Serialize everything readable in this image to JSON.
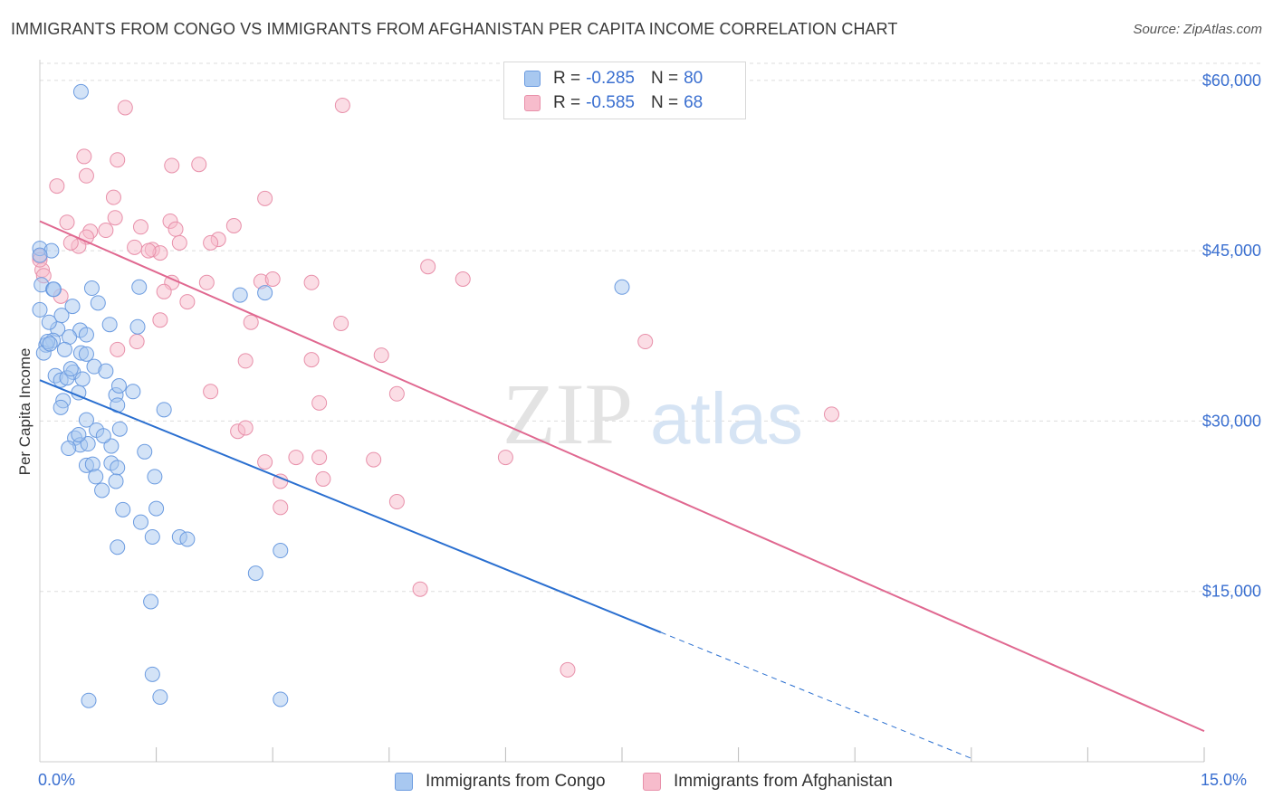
{
  "title": "IMMIGRANTS FROM CONGO VS IMMIGRANTS FROM AFGHANISTAN PER CAPITA INCOME CORRELATION CHART",
  "source": "Source: ZipAtlas.com",
  "watermark": {
    "zip": "ZIP",
    "atlas": "atlas"
  },
  "colors": {
    "congo_fill": "#a8c8f0",
    "congo_stroke": "#6b9be0",
    "congo_line": "#2a6fd0",
    "afghan_fill": "#f7bccc",
    "afghan_stroke": "#e890aa",
    "afghan_line": "#e06890",
    "accent_text": "#3a6fd0",
    "grid": "#dddddd"
  },
  "legend_top": {
    "rows": [
      {
        "r_label": "R =",
        "r_value": "-0.285",
        "n_label": "N =",
        "n_value": "80"
      },
      {
        "r_label": "R =",
        "r_value": "-0.585",
        "n_label": "N =",
        "n_value": "68"
      }
    ]
  },
  "legend_bottom": {
    "congo": "Immigrants from Congo",
    "afghan": "Immigrants from Afghanistan"
  },
  "x_tick_labels": {
    "min": "0.0%",
    "max": "15.0%"
  },
  "chart_data": {
    "type": "scatter",
    "title": "IMMIGRANTS FROM CONGO VS IMMIGRANTS FROM AFGHANISTAN PER CAPITA INCOME CORRELATION CHART",
    "xlabel": "",
    "ylabel": "Per Capita Income",
    "xlim": [
      0,
      15
    ],
    "ylim": [
      0,
      61500
    ],
    "y_ticks": [
      15000,
      30000,
      45000,
      60000
    ],
    "y_tick_labels": [
      "$15,000",
      "$30,000",
      "$45,000",
      "$60,000"
    ],
    "grid": true,
    "legend_position": "top-center",
    "series": [
      {
        "name": "Immigrants from Congo",
        "r": -0.285,
        "n": 80,
        "trend": {
          "x0": 0,
          "y0": 33600,
          "x1": 8.0,
          "y1": 11400,
          "dash_to_x": 12.0
        },
        "points": [
          [
            0.53,
            59000
          ],
          [
            0.0,
            45200
          ],
          [
            0.15,
            45000
          ],
          [
            0.0,
            44600
          ],
          [
            0.02,
            42000
          ],
          [
            0.17,
            41600
          ],
          [
            0.67,
            41700
          ],
          [
            1.28,
            41800
          ],
          [
            2.58,
            41100
          ],
          [
            7.5,
            41800
          ],
          [
            0.0,
            39800
          ],
          [
            0.42,
            40100
          ],
          [
            0.28,
            39300
          ],
          [
            0.23,
            38100
          ],
          [
            0.52,
            38000
          ],
          [
            1.26,
            38300
          ],
          [
            0.17,
            37100
          ],
          [
            0.38,
            37400
          ],
          [
            0.6,
            37600
          ],
          [
            0.08,
            36700
          ],
          [
            0.32,
            36300
          ],
          [
            0.05,
            36000
          ],
          [
            0.53,
            36000
          ],
          [
            0.1,
            37000
          ],
          [
            0.13,
            36800
          ],
          [
            0.7,
            34800
          ],
          [
            0.85,
            34400
          ],
          [
            0.43,
            34300
          ],
          [
            0.2,
            34000
          ],
          [
            0.27,
            33600
          ],
          [
            0.55,
            33700
          ],
          [
            0.35,
            33800
          ],
          [
            0.5,
            32500
          ],
          [
            0.3,
            31800
          ],
          [
            0.98,
            32300
          ],
          [
            1.0,
            31400
          ],
          [
            1.2,
            32600
          ],
          [
            0.6,
            30100
          ],
          [
            0.73,
            29200
          ],
          [
            1.03,
            29300
          ],
          [
            0.45,
            28500
          ],
          [
            0.52,
            27900
          ],
          [
            0.62,
            28000
          ],
          [
            0.92,
            27800
          ],
          [
            0.37,
            27600
          ],
          [
            1.35,
            27300
          ],
          [
            0.6,
            26100
          ],
          [
            0.68,
            26200
          ],
          [
            0.92,
            26300
          ],
          [
            1.0,
            25900
          ],
          [
            1.48,
            25100
          ],
          [
            0.98,
            24700
          ],
          [
            0.8,
            23900
          ],
          [
            1.07,
            22200
          ],
          [
            1.5,
            22300
          ],
          [
            1.3,
            21100
          ],
          [
            1.45,
            19800
          ],
          [
            1.8,
            19800
          ],
          [
            1.9,
            19600
          ],
          [
            1.0,
            18900
          ],
          [
            3.1,
            18600
          ],
          [
            2.78,
            16600
          ],
          [
            1.43,
            14100
          ],
          [
            1.45,
            7700
          ],
          [
            1.55,
            5700
          ],
          [
            0.63,
            5400
          ],
          [
            3.1,
            5500
          ],
          [
            0.75,
            40400
          ],
          [
            0.9,
            38500
          ],
          [
            0.18,
            41600
          ],
          [
            0.4,
            34600
          ],
          [
            0.27,
            31200
          ],
          [
            1.02,
            33100
          ],
          [
            0.72,
            25100
          ],
          [
            0.82,
            28700
          ],
          [
            1.6,
            31000
          ],
          [
            0.5,
            28800
          ],
          [
            2.9,
            41300
          ],
          [
            0.12,
            38700
          ],
          [
            0.6,
            35900
          ]
        ]
      },
      {
        "name": "Immigrants from Afghanistan",
        "r": -0.585,
        "n": 68,
        "trend": {
          "x0": 0,
          "y0": 47600,
          "x1": 15.0,
          "y1": 2700
        },
        "points": [
          [
            1.1,
            57600
          ],
          [
            3.9,
            57800
          ],
          [
            0.57,
            53300
          ],
          [
            1.0,
            53000
          ],
          [
            1.7,
            52500
          ],
          [
            2.05,
            52600
          ],
          [
            0.6,
            51600
          ],
          [
            0.22,
            50700
          ],
          [
            0.95,
            49700
          ],
          [
            2.9,
            49600
          ],
          [
            0.97,
            47900
          ],
          [
            0.35,
            47500
          ],
          [
            1.3,
            47100
          ],
          [
            1.68,
            47600
          ],
          [
            2.5,
            47200
          ],
          [
            0.65,
            46700
          ],
          [
            1.75,
            46900
          ],
          [
            0.6,
            46200
          ],
          [
            0.5,
            45400
          ],
          [
            2.3,
            46000
          ],
          [
            1.22,
            45300
          ],
          [
            1.45,
            45100
          ],
          [
            1.55,
            44800
          ],
          [
            0.0,
            44500
          ],
          [
            0.03,
            43300
          ],
          [
            0.0,
            44200
          ],
          [
            0.05,
            42800
          ],
          [
            5.0,
            43600
          ],
          [
            5.45,
            42500
          ],
          [
            1.7,
            42200
          ],
          [
            2.15,
            42200
          ],
          [
            2.85,
            42300
          ],
          [
            3.5,
            42200
          ],
          [
            1.6,
            41400
          ],
          [
            0.27,
            41000
          ],
          [
            1.9,
            40500
          ],
          [
            2.72,
            38700
          ],
          [
            1.55,
            38900
          ],
          [
            3.88,
            38600
          ],
          [
            1.25,
            37000
          ],
          [
            7.8,
            37000
          ],
          [
            1.0,
            36300
          ],
          [
            4.4,
            35800
          ],
          [
            3.5,
            35400
          ],
          [
            2.65,
            35300
          ],
          [
            2.2,
            32600
          ],
          [
            4.6,
            32400
          ],
          [
            3.6,
            31600
          ],
          [
            10.2,
            30600
          ],
          [
            2.55,
            29100
          ],
          [
            2.65,
            29400
          ],
          [
            3.3,
            26800
          ],
          [
            3.6,
            26800
          ],
          [
            4.3,
            26600
          ],
          [
            6.0,
            26800
          ],
          [
            2.9,
            26400
          ],
          [
            3.1,
            24700
          ],
          [
            3.65,
            24900
          ],
          [
            4.6,
            22900
          ],
          [
            3.1,
            22400
          ],
          [
            4.9,
            15200
          ],
          [
            6.8,
            8100
          ],
          [
            1.8,
            45700
          ],
          [
            2.2,
            45700
          ],
          [
            0.85,
            46800
          ],
          [
            0.4,
            45700
          ],
          [
            1.4,
            45000
          ],
          [
            3.0,
            42500
          ]
        ]
      }
    ]
  }
}
